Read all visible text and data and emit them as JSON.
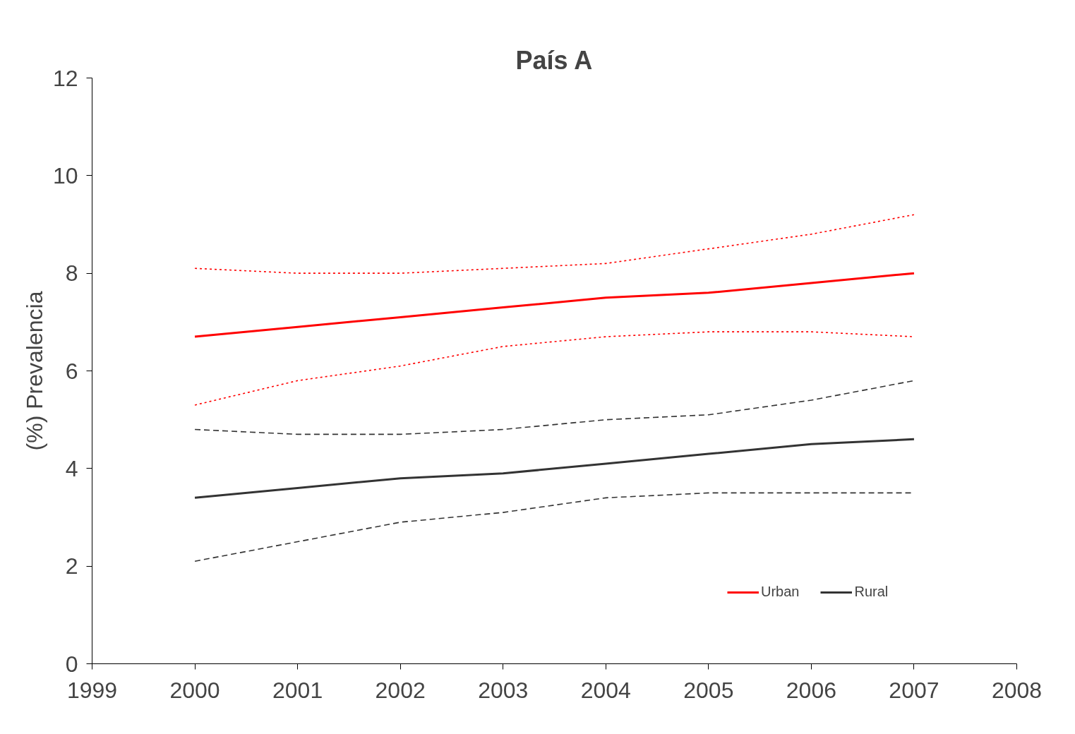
{
  "chart_data": {
    "type": "line",
    "title": "País A",
    "ylabel": "(%) Prevalencia",
    "x": [
      2000,
      2001,
      2002,
      2003,
      2004,
      2005,
      2006,
      2007
    ],
    "xlim": [
      1999,
      2008
    ],
    "xticks": [
      1999,
      2000,
      2001,
      2002,
      2003,
      2004,
      2005,
      2006,
      2007,
      2008
    ],
    "ylim": [
      0,
      12
    ],
    "yticks": [
      0,
      2,
      4,
      6,
      8,
      10,
      12
    ],
    "grid": false,
    "legend": "bottom right",
    "marker": "none",
    "series": [
      {
        "color": "#ff0000",
        "line_style": "dotted",
        "values": [
          8.1,
          8.0,
          8.0,
          8.1,
          8.2,
          8.5,
          8.8,
          9.2
        ]
      },
      {
        "name": "Urban",
        "color": "#ff0000",
        "line_style": "solid",
        "values": [
          6.7,
          6.9,
          7.1,
          7.3,
          7.5,
          7.6,
          7.8,
          8.0
        ]
      },
      {
        "color": "#ff0000",
        "line_style": "dotted",
        "values": [
          5.3,
          5.8,
          6.1,
          6.5,
          6.7,
          6.8,
          6.8,
          6.7
        ]
      },
      {
        "color": "#333333",
        "line_style": "dashed",
        "values": [
          4.8,
          4.7,
          4.7,
          4.8,
          5.0,
          5.1,
          5.4,
          5.8
        ]
      },
      {
        "name": "Rural",
        "color": "#333333",
        "line_style": "solid",
        "values": [
          3.4,
          3.6,
          3.8,
          3.9,
          4.1,
          4.3,
          4.5,
          4.6
        ]
      },
      {
        "color": "#333333",
        "line_style": "dashed",
        "values": [
          2.1,
          2.5,
          2.9,
          3.1,
          3.4,
          3.5,
          3.5,
          3.5
        ]
      }
    ]
  }
}
